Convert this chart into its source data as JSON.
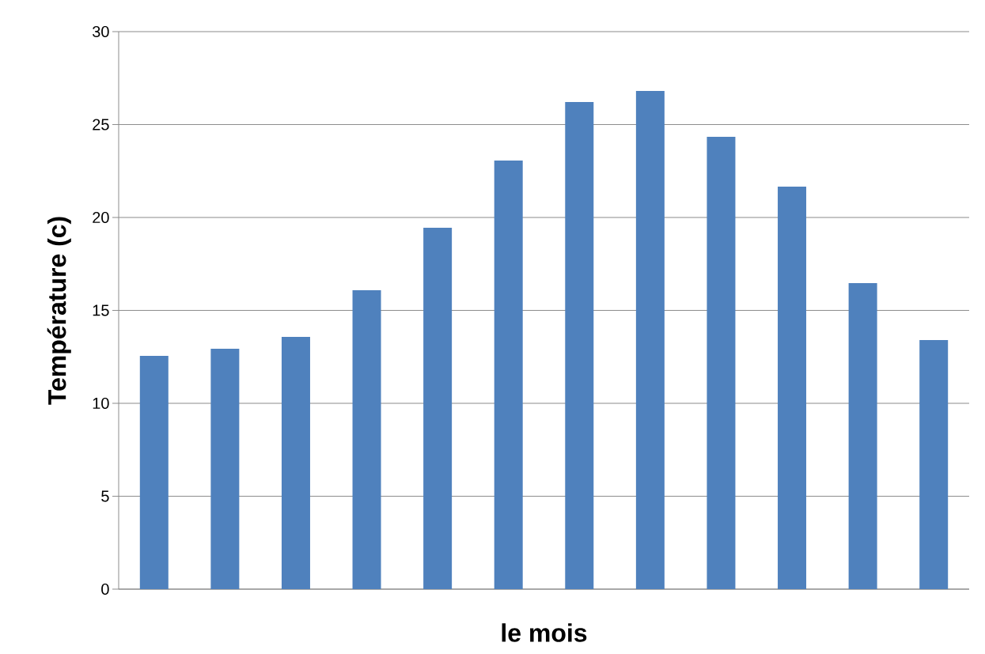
{
  "chart_data": {
    "type": "bar",
    "xlabel": "le mois",
    "ylabel": "Température (c)",
    "categories": [
      null,
      null,
      null,
      null,
      null,
      null,
      null,
      null,
      null,
      null,
      null,
      null
    ],
    "values": [
      12.55,
      12.94,
      13.57,
      16.09,
      19.45,
      23.06,
      26.21,
      26.81,
      24.34,
      21.66,
      16.47,
      13.4
    ],
    "color": "#4f81bd",
    "ylim": [
      0,
      30
    ],
    "yticks": [
      0,
      5,
      10,
      15,
      20,
      25,
      30
    ],
    "grid": "y"
  }
}
